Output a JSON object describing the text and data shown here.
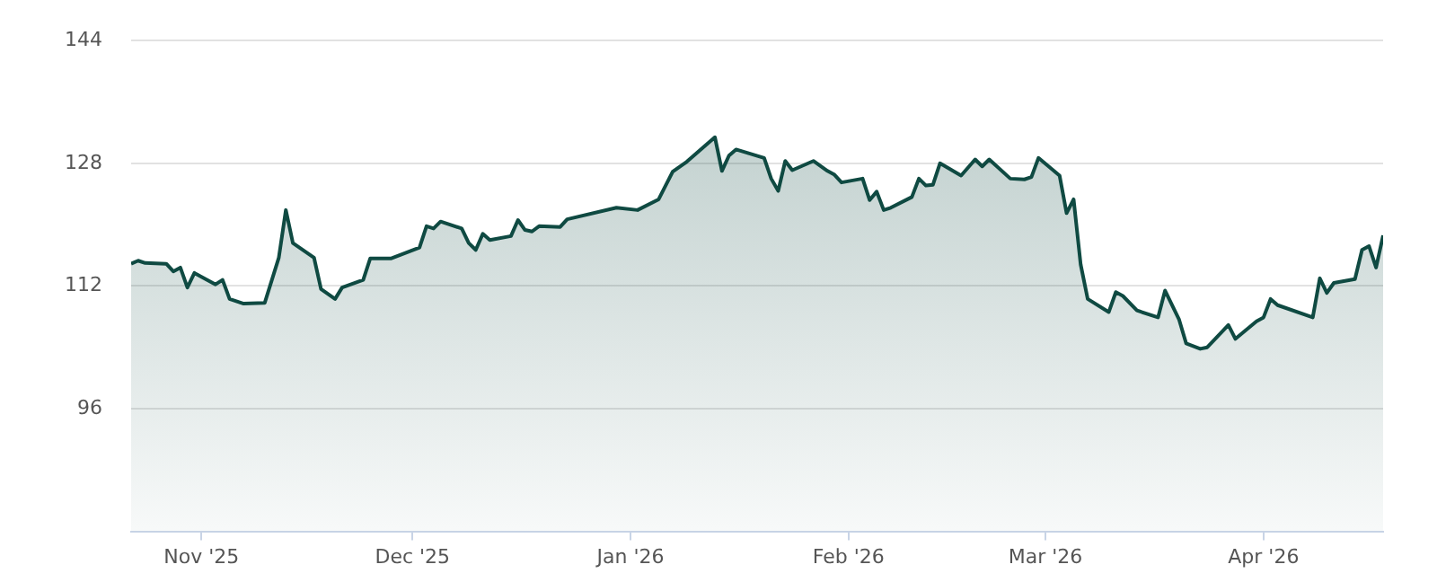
{
  "chart_data": {
    "type": "area",
    "xlim": [
      "2025-10-22",
      "2026-04-18"
    ],
    "xticks": [
      {
        "value": "2025-11-01",
        "label": "Nov '25"
      },
      {
        "value": "2025-12-01",
        "label": "Dec '25"
      },
      {
        "value": "2026-01-01",
        "label": "Jan '26"
      },
      {
        "value": "2026-02-01",
        "label": "Feb '26"
      },
      {
        "value": "2026-03-01",
        "label": "Mar '26"
      },
      {
        "value": "2026-04-01",
        "label": "Apr '26"
      }
    ],
    "ylim": [
      80,
      144
    ],
    "yticks": [
      96,
      112,
      128,
      144
    ],
    "grid": "y",
    "legend": false,
    "x": [
      "2025-10-22",
      "2025-10-23",
      "2025-10-24",
      "2025-10-27",
      "2025-10-28",
      "2025-10-29",
      "2025-10-30",
      "2025-10-31",
      "2025-11-03",
      "2025-11-04",
      "2025-11-05",
      "2025-11-07",
      "2025-11-10",
      "2025-11-12",
      "2025-11-13",
      "2025-11-14",
      "2025-11-17",
      "2025-11-18",
      "2025-11-20",
      "2025-11-21",
      "2025-11-24",
      "2025-11-25",
      "2025-11-28",
      "2025-12-02",
      "2025-12-03",
      "2025-12-04",
      "2025-12-05",
      "2025-12-08",
      "2025-12-09",
      "2025-12-10",
      "2025-12-11",
      "2025-12-12",
      "2025-12-15",
      "2025-12-16",
      "2025-12-17",
      "2025-12-18",
      "2025-12-19",
      "2025-12-22",
      "2025-12-23",
      "2025-12-30",
      "2026-01-02",
      "2026-01-05",
      "2026-01-07",
      "2026-01-09",
      "2026-01-13",
      "2026-01-14",
      "2026-01-15",
      "2026-01-16",
      "2026-01-20",
      "2026-01-21",
      "2026-01-22",
      "2026-01-23",
      "2026-01-24",
      "2026-01-27",
      "2026-01-29",
      "2026-01-30",
      "2026-01-31",
      "2026-02-03",
      "2026-02-04",
      "2026-02-05",
      "2026-02-06",
      "2026-02-07",
      "2026-02-10",
      "2026-02-11",
      "2026-02-12",
      "2026-02-13",
      "2026-02-14",
      "2026-02-17",
      "2026-02-19",
      "2026-02-20",
      "2026-02-21",
      "2026-02-24",
      "2026-02-26",
      "2026-02-27",
      "2026-02-28",
      "2026-03-03",
      "2026-03-04",
      "2026-03-05",
      "2026-03-06",
      "2026-03-07",
      "2026-03-10",
      "2026-03-11",
      "2026-03-12",
      "2026-03-14",
      "2026-03-17",
      "2026-03-18",
      "2026-03-20",
      "2026-03-21",
      "2026-03-23",
      "2026-03-24",
      "2026-03-27",
      "2026-03-28",
      "2026-03-31",
      "2026-04-01",
      "2026-04-02",
      "2026-04-03",
      "2026-04-08",
      "2026-04-09",
      "2026-04-10",
      "2026-04-11",
      "2026-04-14",
      "2026-04-15",
      "2026-04-16",
      "2026-04-17",
      "2026-04-18"
    ],
    "series": [
      {
        "color": "#0f4a42",
        "values": [
          114.9,
          115.3,
          115.0,
          114.9,
          113.9,
          114.4,
          111.8,
          113.7,
          112.2,
          112.8,
          110.3,
          109.7,
          109.8,
          115.7,
          121.9,
          117.6,
          115.7,
          111.6,
          110.3,
          111.8,
          112.8,
          115.6,
          115.6,
          117.0,
          119.8,
          119.5,
          120.4,
          119.5,
          117.6,
          116.7,
          118.8,
          118.0,
          118.5,
          120.6,
          119.3,
          119.1,
          119.8,
          119.7,
          120.7,
          122.2,
          121.9,
          123.3,
          126.9,
          128.2,
          131.4,
          127.0,
          129.0,
          129.8,
          128.7,
          126.0,
          124.4,
          128.3,
          127.1,
          128.3,
          127.0,
          126.5,
          125.5,
          126.0,
          123.2,
          124.3,
          121.9,
          122.2,
          123.6,
          126.0,
          125.1,
          125.2,
          128.0,
          126.4,
          128.5,
          127.6,
          128.5,
          126.0,
          125.9,
          126.2,
          128.7,
          126.4,
          121.5,
          123.3,
          114.8,
          110.3,
          108.6,
          111.2,
          110.7,
          108.8,
          107.9,
          111.4,
          107.6,
          104.5,
          103.8,
          104.0,
          106.9,
          105.1,
          107.4,
          107.9,
          110.3,
          109.5,
          107.9,
          113.0,
          111.1,
          112.4,
          112.9,
          116.7,
          117.2,
          114.4,
          118.6
        ]
      }
    ]
  }
}
